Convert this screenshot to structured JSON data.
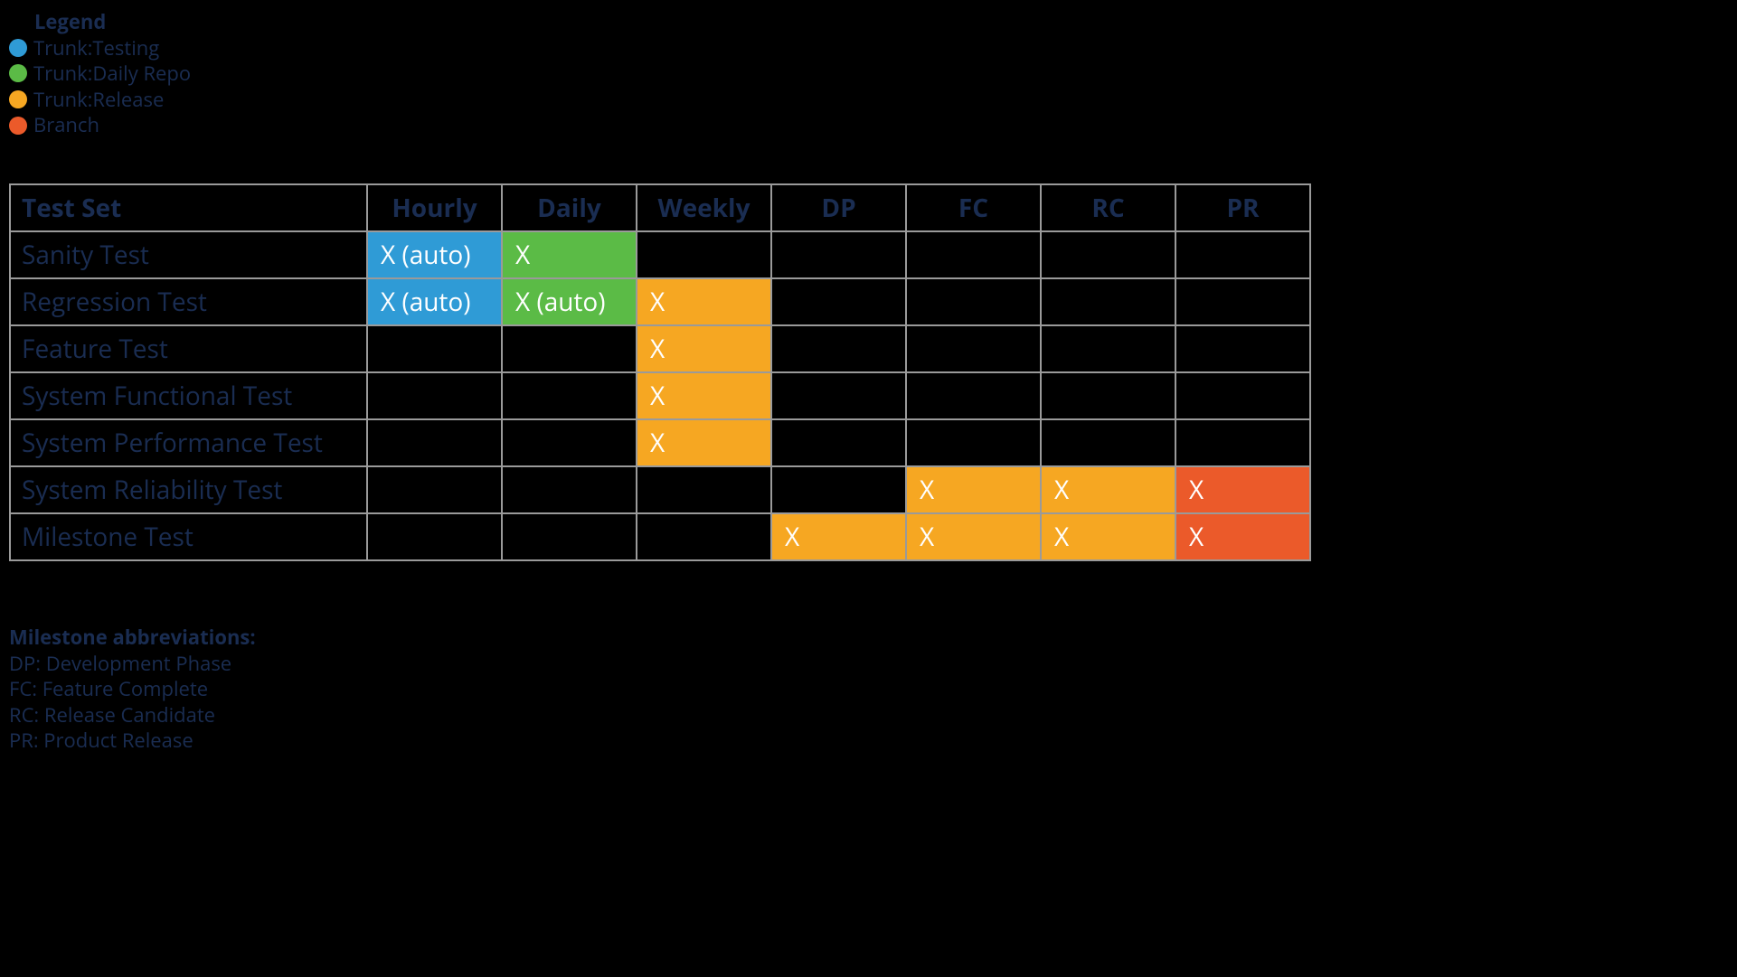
{
  "colors": {
    "testing": "#2f9bd6",
    "daily_repo": "#5bbb46",
    "release": "#f6a722",
    "branch": "#eb5a2a",
    "text_dark": "#1a2d52",
    "cell_text": "#ffffff",
    "border": "#9a9a9a",
    "bg": "#000000"
  },
  "legend": {
    "title": "Legend",
    "items": [
      {
        "label": "Trunk:Testing",
        "color_key": "testing"
      },
      {
        "label": "Trunk:Daily Repo",
        "color_key": "daily_repo"
      },
      {
        "label": "Trunk:Release",
        "color_key": "release"
      },
      {
        "label": "Branch",
        "color_key": "branch"
      }
    ]
  },
  "table": {
    "columns": [
      "Test Set",
      "Hourly",
      "Daily",
      "Weekly",
      "DP",
      "FC",
      "RC",
      "PR"
    ],
    "rows": [
      {
        "label": "Sanity Test",
        "cells": [
          {
            "text": "X (auto)",
            "color_key": "testing"
          },
          {
            "text": "X",
            "color_key": "daily_repo"
          },
          null,
          null,
          null,
          null,
          null
        ]
      },
      {
        "label": "Regression Test",
        "cells": [
          {
            "text": "X (auto)",
            "color_key": "testing"
          },
          {
            "text": "X (auto)",
            "color_key": "daily_repo"
          },
          {
            "text": "X",
            "color_key": "release"
          },
          null,
          null,
          null,
          null
        ]
      },
      {
        "label": "Feature Test",
        "cells": [
          null,
          null,
          {
            "text": "X",
            "color_key": "release"
          },
          null,
          null,
          null,
          null
        ]
      },
      {
        "label": "System Functional Test",
        "cells": [
          null,
          null,
          {
            "text": "X",
            "color_key": "release"
          },
          null,
          null,
          null,
          null
        ]
      },
      {
        "label": "System Performance Test",
        "cells": [
          null,
          null,
          {
            "text": "X",
            "color_key": "release"
          },
          null,
          null,
          null,
          null
        ]
      },
      {
        "label": "System Reliability Test",
        "cells": [
          null,
          null,
          null,
          null,
          {
            "text": "X",
            "color_key": "release"
          },
          {
            "text": "X",
            "color_key": "release"
          },
          {
            "text": "X",
            "color_key": "branch"
          }
        ]
      },
      {
        "label": "Milestone Test",
        "cells": [
          null,
          null,
          null,
          {
            "text": "X",
            "color_key": "release"
          },
          {
            "text": "X",
            "color_key": "release"
          },
          {
            "text": "X",
            "color_key": "release"
          },
          {
            "text": "X",
            "color_key": "branch"
          }
        ]
      }
    ]
  },
  "abbrev": {
    "title": "Milestone abbreviations:",
    "lines": [
      "DP: Development Phase",
      "FC: Feature Complete",
      "RC: Release Candidate",
      "PR: Product Release"
    ]
  }
}
